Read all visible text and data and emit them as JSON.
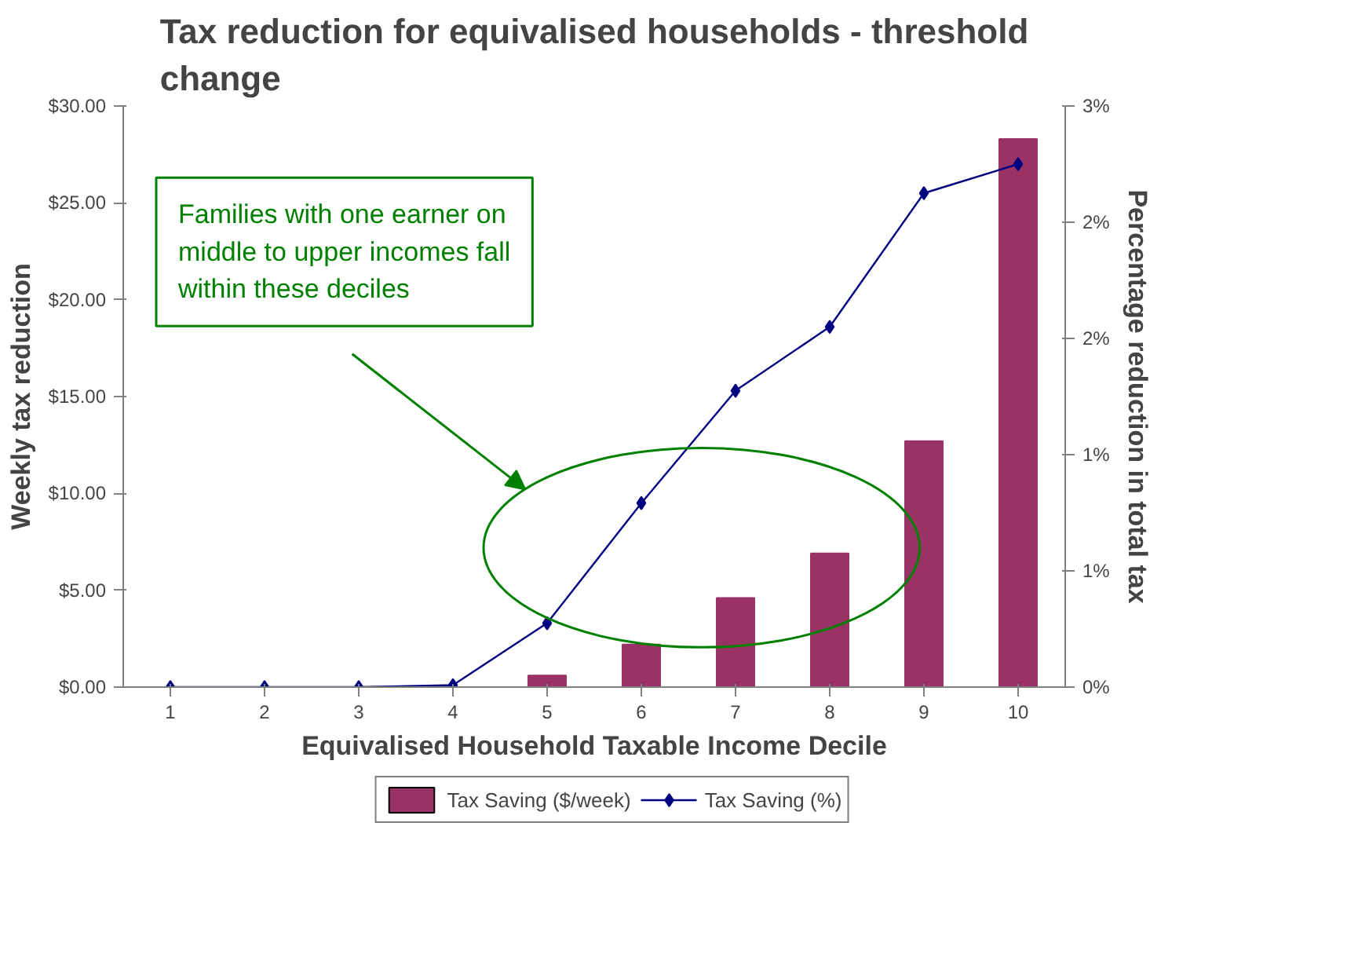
{
  "chart_data": {
    "type": "bar",
    "title": "Tax reduction for equivalised households - threshold change",
    "xlabel": "Equivalised Household Taxable Income Decile",
    "ylabel": "Weekly tax reduction",
    "y2label": "Percentage reduction in total tax",
    "categories": [
      "1",
      "2",
      "3",
      "4",
      "5",
      "6",
      "7",
      "8",
      "9",
      "10"
    ],
    "series": [
      {
        "name": "Tax Saving ($/week)",
        "color": "#993366",
        "values": [
          0,
          0,
          0,
          0,
          0.6,
          2.2,
          4.6,
          6.9,
          12.7,
          28.3
        ]
      },
      {
        "name": "Tax Saving (%)",
        "type": "line",
        "axis": "y2",
        "color": "#000080",
        "marker": "diamond",
        "values": [
          0,
          0,
          0,
          0.01,
          0.33,
          0.95,
          1.53,
          1.86,
          2.55,
          2.7
        ]
      }
    ],
    "ylim": [
      0,
      30
    ],
    "yticks": [
      {
        "value": 0,
        "label": "$0.00"
      },
      {
        "value": 5,
        "label": "$5.00"
      },
      {
        "value": 10,
        "label": "$10.00"
      },
      {
        "value": 15,
        "label": "$15.00"
      },
      {
        "value": 20,
        "label": "$20.00"
      },
      {
        "value": 25,
        "label": "$25.00"
      },
      {
        "value": 30,
        "label": "$30.00"
      }
    ],
    "y2lim": [
      0,
      3
    ],
    "y2ticks": [
      {
        "value": 0,
        "label": "0%"
      },
      {
        "value": 0.6,
        "label": "1%"
      },
      {
        "value": 1.2,
        "label": "1%"
      },
      {
        "value": 1.8,
        "label": "2%"
      },
      {
        "value": 2.4,
        "label": "2%"
      },
      {
        "value": 3,
        "label": "3%"
      }
    ],
    "annotations": [
      "Families with one earner on middle to upper incomes fall within these deciles"
    ],
    "grid": false,
    "legend": "bottom"
  }
}
